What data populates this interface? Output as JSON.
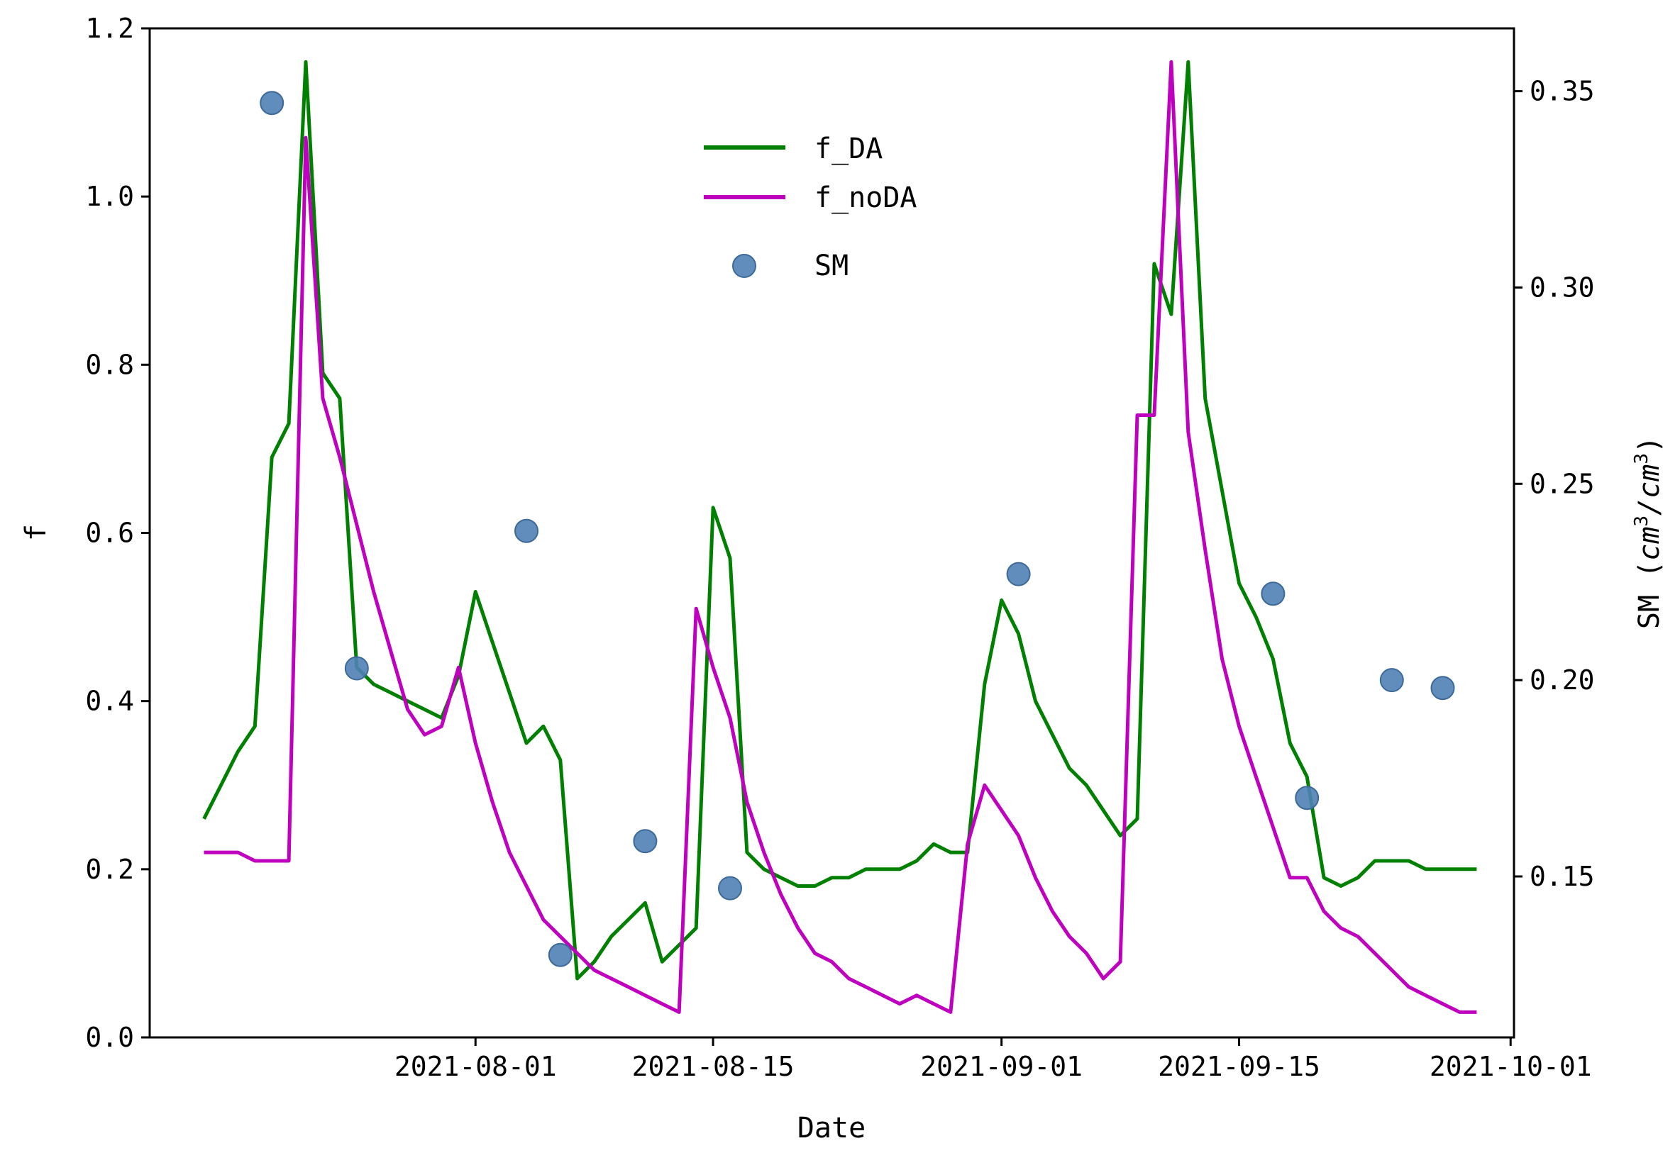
{
  "chart_data": {
    "type": "line",
    "title": "",
    "xlabel": "Date",
    "ylabel": "f",
    "y2label_prefix": "SM (",
    "y2label_unit_1": "cm",
    "y2label_sup_1": "3",
    "y2label_sep": "/",
    "y2label_unit_2": "cm",
    "y2label_sup_2": "3",
    "y2label_suffix": ")",
    "ylim": [
      0.0,
      1.2
    ],
    "y2lim": [
      0.109,
      0.366
    ],
    "xlim_day": [
      -3.2,
      77.2
    ],
    "x_origin_date": "2021-07-16",
    "x_ticks": [
      {
        "day": 16,
        "label": "2021-08-01"
      },
      {
        "day": 30,
        "label": "2021-08-15"
      },
      {
        "day": 47,
        "label": "2021-09-01"
      },
      {
        "day": 61,
        "label": "2021-09-15"
      },
      {
        "day": 77,
        "label": "2021-10-01"
      }
    ],
    "y_ticks": [
      {
        "value": 0.0,
        "label": "0.0"
      },
      {
        "value": 0.2,
        "label": "0.2"
      },
      {
        "value": 0.4,
        "label": "0.4"
      },
      {
        "value": 0.6,
        "label": "0.6"
      },
      {
        "value": 0.8,
        "label": "0.8"
      },
      {
        "value": 1.0,
        "label": "1.0"
      },
      {
        "value": 1.2,
        "label": "1.2"
      }
    ],
    "y2_ticks": [
      {
        "value": 0.15,
        "label": "0.15"
      },
      {
        "value": 0.2,
        "label": "0.20"
      },
      {
        "value": 0.25,
        "label": "0.25"
      },
      {
        "value": 0.3,
        "label": "0.30"
      },
      {
        "value": 0.35,
        "label": "0.35"
      }
    ],
    "legend": {
      "position": "upper-center"
    },
    "series": [
      {
        "name": "f_DA",
        "kind": "line",
        "axis": "left",
        "color": "#008000",
        "points": [
          [
            0,
            0.26
          ],
          [
            1,
            0.3
          ],
          [
            2,
            0.34
          ],
          [
            3,
            0.37
          ],
          [
            4,
            0.69
          ],
          [
            5,
            0.73
          ],
          [
            6,
            1.16
          ],
          [
            7,
            0.79
          ],
          [
            8,
            0.76
          ],
          [
            9,
            0.44
          ],
          [
            10,
            0.42
          ],
          [
            11,
            0.41
          ],
          [
            12,
            0.4
          ],
          [
            13,
            0.39
          ],
          [
            14,
            0.38
          ],
          [
            15,
            0.43
          ],
          [
            16,
            0.53
          ],
          [
            17,
            0.47
          ],
          [
            18,
            0.41
          ],
          [
            19,
            0.35
          ],
          [
            20,
            0.37
          ],
          [
            21,
            0.33
          ],
          [
            22,
            0.07
          ],
          [
            23,
            0.09
          ],
          [
            24,
            0.12
          ],
          [
            25,
            0.14
          ],
          [
            26,
            0.16
          ],
          [
            27,
            0.09
          ],
          [
            28,
            0.11
          ],
          [
            29,
            0.13
          ],
          [
            30,
            0.63
          ],
          [
            31,
            0.57
          ],
          [
            32,
            0.22
          ],
          [
            33,
            0.2
          ],
          [
            34,
            0.19
          ],
          [
            35,
            0.18
          ],
          [
            36,
            0.18
          ],
          [
            37,
            0.19
          ],
          [
            38,
            0.19
          ],
          [
            39,
            0.2
          ],
          [
            40,
            0.2
          ],
          [
            41,
            0.2
          ],
          [
            42,
            0.21
          ],
          [
            43,
            0.23
          ],
          [
            44,
            0.22
          ],
          [
            45,
            0.22
          ],
          [
            46,
            0.42
          ],
          [
            47,
            0.52
          ],
          [
            48,
            0.48
          ],
          [
            49,
            0.4
          ],
          [
            50,
            0.36
          ],
          [
            51,
            0.32
          ],
          [
            52,
            0.3
          ],
          [
            53,
            0.27
          ],
          [
            54,
            0.24
          ],
          [
            55,
            0.26
          ],
          [
            56,
            0.92
          ],
          [
            57,
            0.86
          ],
          [
            58,
            1.16
          ],
          [
            59,
            0.76
          ],
          [
            60,
            0.65
          ],
          [
            61,
            0.54
          ],
          [
            62,
            0.5
          ],
          [
            63,
            0.45
          ],
          [
            64,
            0.35
          ],
          [
            65,
            0.31
          ],
          [
            66,
            0.19
          ],
          [
            67,
            0.18
          ],
          [
            68,
            0.19
          ],
          [
            69,
            0.21
          ],
          [
            70,
            0.21
          ],
          [
            71,
            0.21
          ],
          [
            72,
            0.2
          ],
          [
            73,
            0.2
          ],
          [
            74,
            0.2
          ],
          [
            75,
            0.2
          ]
        ]
      },
      {
        "name": "f_noDA",
        "kind": "line",
        "axis": "left",
        "color": "#bf00bf",
        "points": [
          [
            0,
            0.22
          ],
          [
            1,
            0.22
          ],
          [
            2,
            0.22
          ],
          [
            3,
            0.21
          ],
          [
            4,
            0.21
          ],
          [
            5,
            0.21
          ],
          [
            6,
            1.07
          ],
          [
            7,
            0.76
          ],
          [
            8,
            0.69
          ],
          [
            9,
            0.61
          ],
          [
            10,
            0.53
          ],
          [
            11,
            0.46
          ],
          [
            12,
            0.39
          ],
          [
            13,
            0.36
          ],
          [
            14,
            0.37
          ],
          [
            15,
            0.44
          ],
          [
            16,
            0.35
          ],
          [
            17,
            0.28
          ],
          [
            18,
            0.22
          ],
          [
            19,
            0.18
          ],
          [
            20,
            0.14
          ],
          [
            21,
            0.12
          ],
          [
            22,
            0.1
          ],
          [
            23,
            0.08
          ],
          [
            24,
            0.07
          ],
          [
            25,
            0.06
          ],
          [
            26,
            0.05
          ],
          [
            27,
            0.04
          ],
          [
            28,
            0.03
          ],
          [
            29,
            0.51
          ],
          [
            30,
            0.44
          ],
          [
            31,
            0.38
          ],
          [
            32,
            0.28
          ],
          [
            33,
            0.22
          ],
          [
            34,
            0.17
          ],
          [
            35,
            0.13
          ],
          [
            36,
            0.1
          ],
          [
            37,
            0.09
          ],
          [
            38,
            0.07
          ],
          [
            39,
            0.06
          ],
          [
            40,
            0.05
          ],
          [
            41,
            0.04
          ],
          [
            42,
            0.05
          ],
          [
            43,
            0.04
          ],
          [
            44,
            0.03
          ],
          [
            45,
            0.23
          ],
          [
            46,
            0.3
          ],
          [
            47,
            0.27
          ],
          [
            48,
            0.24
          ],
          [
            49,
            0.19
          ],
          [
            50,
            0.15
          ],
          [
            51,
            0.12
          ],
          [
            52,
            0.1
          ],
          [
            53,
            0.07
          ],
          [
            54,
            0.09
          ],
          [
            55,
            0.74
          ],
          [
            56,
            0.74
          ],
          [
            57,
            1.16
          ],
          [
            58,
            0.72
          ],
          [
            59,
            0.58
          ],
          [
            60,
            0.45
          ],
          [
            61,
            0.37
          ],
          [
            62,
            0.31
          ],
          [
            63,
            0.25
          ],
          [
            64,
            0.19
          ],
          [
            65,
            0.19
          ],
          [
            66,
            0.15
          ],
          [
            67,
            0.13
          ],
          [
            68,
            0.12
          ],
          [
            69,
            0.1
          ],
          [
            70,
            0.08
          ],
          [
            71,
            0.06
          ],
          [
            72,
            0.05
          ],
          [
            73,
            0.04
          ],
          [
            74,
            0.03
          ],
          [
            75,
            0.03
          ]
        ]
      },
      {
        "name": "SM",
        "kind": "scatter",
        "axis": "right",
        "color": "#4f81b5",
        "points": [
          [
            4,
            0.347
          ],
          [
            9,
            0.203
          ],
          [
            19,
            0.238
          ],
          [
            21,
            0.13
          ],
          [
            26,
            0.159
          ],
          [
            31,
            0.147
          ],
          [
            48,
            0.227
          ],
          [
            63,
            0.222
          ],
          [
            65,
            0.17
          ],
          [
            70,
            0.2
          ],
          [
            73,
            0.198
          ]
        ]
      }
    ]
  }
}
